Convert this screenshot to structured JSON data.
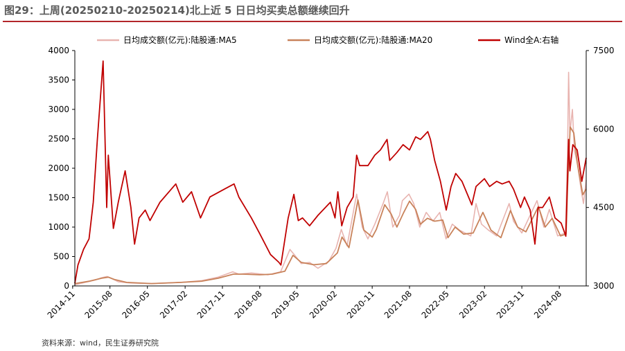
{
  "title": "图29：上周(20250210-20250214)北上近 5 日日均买卖总额继续回升",
  "source": "资料来源：wind，民生证券研究院",
  "chart_data": {
    "type": "line",
    "x_tick_labels": [
      "2014-11",
      "2015-08",
      "2016-05",
      "2017-02",
      "2017-11",
      "2018-08",
      "2019-05",
      "2020-02",
      "2020-11",
      "2021-08",
      "2022-05",
      "2023-02",
      "2023-11",
      "2024-08"
    ],
    "x_range": [
      "2014-11-17",
      "2025-02-14"
    ],
    "left_axis": {
      "ylim": [
        0,
        4000
      ],
      "ticks": [
        0,
        500,
        1000,
        1500,
        2000,
        2500,
        3000,
        3500,
        4000
      ]
    },
    "right_axis": {
      "ylim": [
        3000,
        7500
      ],
      "ticks": [
        3000,
        4500,
        6000,
        7500
      ]
    },
    "legend_position": "top",
    "series": [
      {
        "name": "日均成交额(亿元):陆股通:MA5",
        "axis": "left",
        "color": "#e8b4b0",
        "points": [
          [
            "2014-11-17",
            20
          ],
          [
            "2015-02-01",
            60
          ],
          [
            "2015-04-15",
            100
          ],
          [
            "2015-06-01",
            140
          ],
          [
            "2015-07-10",
            160
          ],
          [
            "2015-08-20",
            120
          ],
          [
            "2015-10-01",
            70
          ],
          [
            "2016-01-01",
            50
          ],
          [
            "2016-06-01",
            40
          ],
          [
            "2017-01-01",
            60
          ],
          [
            "2017-06-01",
            90
          ],
          [
            "2017-10-01",
            150
          ],
          [
            "2018-01-15",
            240
          ],
          [
            "2018-03-01",
            200
          ],
          [
            "2018-06-01",
            220
          ],
          [
            "2018-10-01",
            190
          ],
          [
            "2019-01-01",
            240
          ],
          [
            "2019-03-10",
            620
          ],
          [
            "2019-04-15",
            520
          ],
          [
            "2019-06-01",
            380
          ],
          [
            "2019-08-01",
            400
          ],
          [
            "2019-10-01",
            300
          ],
          [
            "2019-12-20",
            420
          ],
          [
            "2020-02-10",
            640
          ],
          [
            "2020-03-20",
            960
          ],
          [
            "2020-05-01",
            680
          ],
          [
            "2020-07-10",
            1560
          ],
          [
            "2020-08-20",
            1000
          ],
          [
            "2020-10-01",
            800
          ],
          [
            "2020-11-20",
            1050
          ],
          [
            "2021-01-20",
            1400
          ],
          [
            "2021-02-20",
            1600
          ],
          [
            "2021-04-01",
            1000
          ],
          [
            "2021-05-20",
            1200
          ],
          [
            "2021-06-10",
            1450
          ],
          [
            "2021-07-28",
            1560
          ],
          [
            "2021-09-01",
            1400
          ],
          [
            "2021-10-15",
            1000
          ],
          [
            "2021-12-01",
            1250
          ],
          [
            "2022-01-20",
            1100
          ],
          [
            "2022-03-10",
            1250
          ],
          [
            "2022-04-25",
            800
          ],
          [
            "2022-06-10",
            1050
          ],
          [
            "2022-08-01",
            950
          ],
          [
            "2022-10-24",
            850
          ],
          [
            "2022-12-01",
            1400
          ],
          [
            "2023-01-10",
            1050
          ],
          [
            "2023-03-01",
            950
          ],
          [
            "2023-05-01",
            850
          ],
          [
            "2023-07-31",
            1400
          ],
          [
            "2023-09-01",
            1100
          ],
          [
            "2023-11-01",
            900
          ],
          [
            "2024-02-20",
            1450
          ],
          [
            "2024-04-10",
            1000
          ],
          [
            "2024-05-20",
            1300
          ],
          [
            "2024-07-20",
            850
          ],
          [
            "2024-09-15",
            900
          ],
          [
            "2024-09-30",
            2200
          ],
          [
            "2024-10-08",
            3630
          ],
          [
            "2024-10-18",
            2600
          ],
          [
            "2024-11-05",
            3000
          ],
          [
            "2024-11-20",
            2300
          ],
          [
            "2024-12-10",
            2100
          ],
          [
            "2025-01-10",
            1600
          ],
          [
            "2025-01-25",
            1400
          ],
          [
            "2025-02-14",
            1800
          ]
        ]
      },
      {
        "name": "日均成交额(亿元):陆股通:MA20",
        "axis": "left",
        "color": "#c8825a",
        "points": [
          [
            "2014-11-17",
            40
          ],
          [
            "2015-03-01",
            80
          ],
          [
            "2015-06-01",
            130
          ],
          [
            "2015-07-20",
            150
          ],
          [
            "2015-09-01",
            110
          ],
          [
            "2015-12-01",
            60
          ],
          [
            "2016-06-01",
            40
          ],
          [
            "2017-01-01",
            60
          ],
          [
            "2017-06-01",
            80
          ],
          [
            "2017-10-01",
            130
          ],
          [
            "2018-01-20",
            200
          ],
          [
            "2018-04-01",
            200
          ],
          [
            "2018-08-01",
            190
          ],
          [
            "2018-11-01",
            200
          ],
          [
            "2019-02-01",
            250
          ],
          [
            "2019-04-01",
            520
          ],
          [
            "2019-06-01",
            400
          ],
          [
            "2019-09-01",
            360
          ],
          [
            "2019-12-01",
            380
          ],
          [
            "2020-02-20",
            560
          ],
          [
            "2020-03-25",
            830
          ],
          [
            "2020-05-15",
            650
          ],
          [
            "2020-07-20",
            1460
          ],
          [
            "2020-09-01",
            950
          ],
          [
            "2020-11-01",
            830
          ],
          [
            "2020-12-01",
            960
          ],
          [
            "2021-02-01",
            1380
          ],
          [
            "2021-03-20",
            1220
          ],
          [
            "2021-05-01",
            1000
          ],
          [
            "2021-06-20",
            1250
          ],
          [
            "2021-08-01",
            1440
          ],
          [
            "2021-09-15",
            1300
          ],
          [
            "2021-10-20",
            1050
          ],
          [
            "2021-12-10",
            1150
          ],
          [
            "2022-02-01",
            1100
          ],
          [
            "2022-04-01",
            1120
          ],
          [
            "2022-05-10",
            820
          ],
          [
            "2022-07-01",
            1000
          ],
          [
            "2022-09-01",
            880
          ],
          [
            "2022-11-10",
            900
          ],
          [
            "2023-01-20",
            1250
          ],
          [
            "2023-03-20",
            950
          ],
          [
            "2023-06-01",
            820
          ],
          [
            "2023-08-10",
            1280
          ],
          [
            "2023-10-01",
            1000
          ],
          [
            "2023-12-01",
            920
          ],
          [
            "2024-03-01",
            1350
          ],
          [
            "2024-04-20",
            1000
          ],
          [
            "2024-06-10",
            1150
          ],
          [
            "2024-08-10",
            850
          ],
          [
            "2024-09-20",
            880
          ],
          [
            "2024-10-01",
            1700
          ],
          [
            "2024-10-20",
            2700
          ],
          [
            "2024-11-15",
            2600
          ],
          [
            "2024-12-10",
            2100
          ],
          [
            "2025-01-20",
            1550
          ],
          [
            "2025-02-14",
            1650
          ]
        ]
      },
      {
        "name": "Wind全A:右轴",
        "axis": "right",
        "color": "#c00000",
        "points": [
          [
            "2014-11-17",
            3050
          ],
          [
            "2014-12-10",
            3400
          ],
          [
            "2015-01-20",
            3700
          ],
          [
            "2015-03-01",
            3900
          ],
          [
            "2015-04-01",
            4600
          ],
          [
            "2015-05-01",
            5800
          ],
          [
            "2015-06-12",
            7300
          ],
          [
            "2015-07-08",
            4500
          ],
          [
            "2015-07-20",
            5500
          ],
          [
            "2015-08-26",
            4100
          ],
          [
            "2015-10-01",
            4600
          ],
          [
            "2015-11-20",
            5200
          ],
          [
            "2016-01-01",
            4500
          ],
          [
            "2016-01-28",
            3800
          ],
          [
            "2016-03-01",
            4300
          ],
          [
            "2016-04-15",
            4450
          ],
          [
            "2016-05-20",
            4250
          ],
          [
            "2016-08-01",
            4600
          ],
          [
            "2016-11-25",
            4950
          ],
          [
            "2017-01-15",
            4600
          ],
          [
            "2017-03-20",
            4800
          ],
          [
            "2017-05-25",
            4300
          ],
          [
            "2017-08-01",
            4700
          ],
          [
            "2017-11-15",
            4850
          ],
          [
            "2018-01-25",
            4950
          ],
          [
            "2018-03-01",
            4700
          ],
          [
            "2018-06-01",
            4300
          ],
          [
            "2018-08-01",
            4000
          ],
          [
            "2018-10-19",
            3600
          ],
          [
            "2018-12-20",
            3450
          ],
          [
            "2019-01-03",
            3400
          ],
          [
            "2019-02-25",
            4300
          ],
          [
            "2019-04-08",
            4750
          ],
          [
            "2019-05-10",
            4250
          ],
          [
            "2019-06-10",
            4300
          ],
          [
            "2019-08-01",
            4150
          ],
          [
            "2019-10-01",
            4350
          ],
          [
            "2019-12-31",
            4600
          ],
          [
            "2020-02-03",
            4300
          ],
          [
            "2020-02-24",
            4800
          ],
          [
            "2020-03-23",
            4150
          ],
          [
            "2020-05-01",
            4500
          ],
          [
            "2020-06-15",
            4700
          ],
          [
            "2020-07-10",
            5500
          ],
          [
            "2020-08-01",
            5300
          ],
          [
            "2020-10-01",
            5300
          ],
          [
            "2020-11-20",
            5500
          ],
          [
            "2020-12-31",
            5600
          ],
          [
            "2021-02-18",
            5800
          ],
          [
            "2021-03-09",
            5400
          ],
          [
            "2021-05-01",
            5550
          ],
          [
            "2021-06-15",
            5700
          ],
          [
            "2021-08-01",
            5600
          ],
          [
            "2021-09-15",
            5850
          ],
          [
            "2021-10-20",
            5800
          ],
          [
            "2021-12-13",
            5950
          ],
          [
            "2022-01-01",
            5800
          ],
          [
            "2022-02-01",
            5400
          ],
          [
            "2022-03-15",
            5000
          ],
          [
            "2022-04-27",
            4450
          ],
          [
            "2022-06-01",
            4900
          ],
          [
            "2022-07-05",
            5150
          ],
          [
            "2022-08-20",
            5000
          ],
          [
            "2022-10-31",
            4550
          ],
          [
            "2022-12-01",
            4900
          ],
          [
            "2023-01-31",
            5050
          ],
          [
            "2023-03-10",
            4900
          ],
          [
            "2023-05-01",
            5000
          ],
          [
            "2023-06-10",
            4950
          ],
          [
            "2023-07-31",
            5000
          ],
          [
            "2023-09-01",
            4850
          ],
          [
            "2023-10-23",
            4500
          ],
          [
            "2023-11-20",
            4700
          ],
          [
            "2024-01-01",
            4450
          ],
          [
            "2024-02-05",
            3800
          ],
          [
            "2024-02-28",
            4500
          ],
          [
            "2024-04-01",
            4500
          ],
          [
            "2024-05-20",
            4700
          ],
          [
            "2024-07-01",
            4300
          ],
          [
            "2024-08-15",
            4200
          ],
          [
            "2024-09-18",
            3950
          ],
          [
            "2024-10-08",
            5800
          ],
          [
            "2024-10-18",
            5200
          ],
          [
            "2024-11-08",
            5700
          ],
          [
            "2024-12-10",
            5600
          ],
          [
            "2025-01-13",
            5000
          ],
          [
            "2025-02-14",
            5450
          ]
        ]
      }
    ]
  }
}
